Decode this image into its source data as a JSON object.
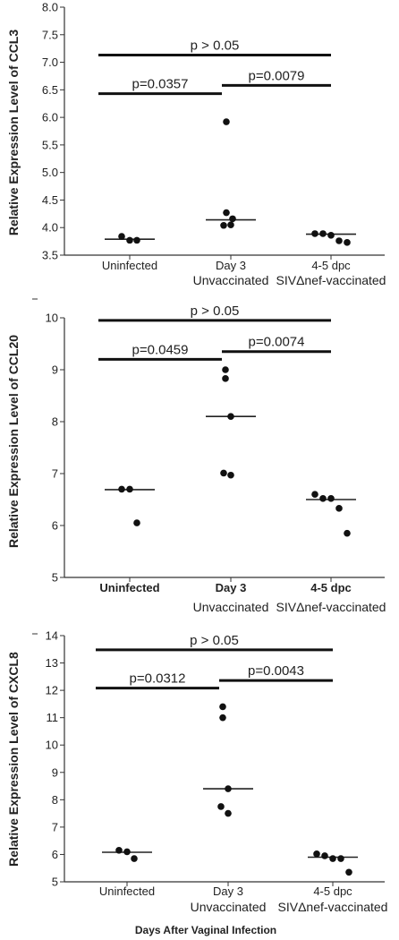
{
  "chart_data": [
    {
      "type": "scatter",
      "ylabel": "Relative Expression Level of CCL3",
      "ylim": [
        3.5,
        8.0
      ],
      "yticks": [
        "3.5",
        "4.0",
        "4.5",
        "5.0",
        "5.5",
        "6.0",
        "6.5",
        "7.0",
        "7.5",
        "8.0"
      ],
      "categories": [
        "Uninfected",
        "Day 3",
        "4-5 dpc"
      ],
      "subcategories": [
        "",
        "Unvaccinated",
        "SIVΔnef-vaccinated"
      ],
      "category_bold": false,
      "points": [
        [
          3.84,
          3.77,
          3.77
        ],
        [
          5.92,
          4.27,
          4.16,
          4.04,
          4.05
        ],
        [
          3.89,
          3.89,
          3.86,
          3.76,
          3.73
        ]
      ],
      "medians": [
        3.79,
        4.14,
        3.88
      ],
      "comparisons": [
        {
          "from": 0,
          "to": 1,
          "y": 6.43,
          "label": "p=0.0357"
        },
        {
          "from": 1,
          "to": 2,
          "y": 6.58,
          "label": "p=0.0079"
        },
        {
          "from": 0,
          "to": 2,
          "y": 7.13,
          "label": "p > 0.05"
        }
      ],
      "xlabel": ""
    },
    {
      "type": "scatter",
      "ylabel": "Relative Expression Level of CCL20",
      "ylim": [
        5,
        10
      ],
      "yticks": [
        "5",
        "6",
        "7",
        "8",
        "9",
        "10"
      ],
      "categories": [
        "Uninfected",
        "Day 3",
        "4-5 dpc"
      ],
      "subcategories": [
        "",
        "Unvaccinated",
        "SIVΔnef-vaccinated"
      ],
      "category_bold": true,
      "points": [
        [
          6.7,
          6.7,
          6.05
        ],
        [
          9.0,
          8.83,
          8.1,
          7.01,
          6.97
        ],
        [
          6.6,
          6.52,
          6.52,
          6.33,
          5.85
        ]
      ],
      "medians": [
        6.69,
        8.1,
        6.5
      ],
      "comparisons": [
        {
          "from": 0,
          "to": 1,
          "y": 9.2,
          "label": "p=0.0459"
        },
        {
          "from": 1,
          "to": 2,
          "y": 9.35,
          "label": "p=0.0074"
        },
        {
          "from": 0,
          "to": 2,
          "y": 9.95,
          "label": "p > 0.05"
        }
      ],
      "xlabel": ""
    },
    {
      "type": "scatter",
      "ylabel": "Relative Expression Level of CXCL8",
      "ylim": [
        5,
        14
      ],
      "yticks": [
        "5",
        "6",
        "7",
        "8",
        "9",
        "10",
        "11",
        "12",
        "13",
        "14"
      ],
      "categories": [
        "Uninfected",
        "Day 3",
        "4-5 dpc"
      ],
      "subcategories": [
        "",
        "Unvaccinated",
        "SIVΔnef-vaccinated"
      ],
      "category_bold": false,
      "points": [
        [
          6.15,
          6.1,
          5.85
        ],
        [
          11.4,
          11.0,
          8.4,
          7.75,
          7.5
        ],
        [
          6.02,
          5.95,
          5.85,
          5.85,
          5.35
        ]
      ],
      "medians": [
        6.08,
        8.4,
        5.9
      ],
      "comparisons": [
        {
          "from": 0,
          "to": 1,
          "y": 12.08,
          "label": "p=0.0312"
        },
        {
          "from": 1,
          "to": 2,
          "y": 12.36,
          "label": "p=0.0043"
        },
        {
          "from": 0,
          "to": 2,
          "y": 13.48,
          "label": "p > 0.05"
        }
      ],
      "xlabel": "Days After Vaginal Infection"
    }
  ]
}
